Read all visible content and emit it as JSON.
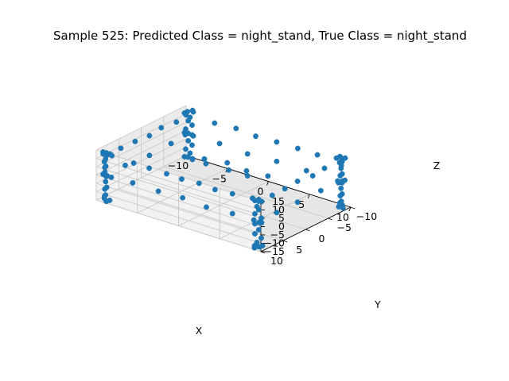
{
  "chart_data": {
    "type": "scatter",
    "title": "Sample 525: Predicted Class = night_stand, True Class = night_stand",
    "xlabel": "X",
    "ylabel": "Y",
    "zlabel": "Z",
    "xlim": [
      -10,
      10
    ],
    "ylim": [
      -10,
      10
    ],
    "zlim": [
      -15,
      15
    ],
    "xticks": [
      "−10",
      "−5",
      "0",
      "5",
      "10"
    ],
    "xtick_values": [
      -10,
      -5,
      0,
      5,
      10
    ],
    "yticks": [
      "−10",
      "−5",
      "0",
      "5",
      "10"
    ],
    "ytick_values": [
      -10,
      -5,
      0,
      5,
      10
    ],
    "zticks": [
      "−15",
      "−10",
      "−5",
      "0",
      "5",
      "10",
      "15"
    ],
    "ztick_values": [
      -15,
      -10,
      -5,
      0,
      5,
      10,
      15
    ],
    "grid": true,
    "projection": "3d",
    "marker_color": "#1f77b4",
    "pane_colors": {
      "x": "#f2f2f2",
      "y": "#ebebeb",
      "z": "#e6e6e6"
    },
    "points": [
      [
        -9.5,
        9.4,
        13.8
      ],
      [
        -9.3,
        9.5,
        12.9
      ],
      [
        -9.6,
        9.2,
        12.2
      ],
      [
        -9.0,
        9.6,
        14.3
      ],
      [
        -8.8,
        9.3,
        13.6
      ],
      [
        -9.2,
        9.0,
        11.9
      ],
      [
        -8.5,
        9.5,
        14.0
      ],
      [
        -8.6,
        9.1,
        12.6
      ],
      [
        9.3,
        9.2,
        14.1
      ],
      [
        9.0,
        9.5,
        13.4
      ],
      [
        9.5,
        8.9,
        12.8
      ],
      [
        8.8,
        9.6,
        14.6
      ],
      [
        9.1,
        8.8,
        12.2
      ],
      [
        8.6,
        9.3,
        13.9
      ],
      [
        9.2,
        -9.4,
        13.9
      ],
      [
        9.5,
        -9.0,
        12.9
      ],
      [
        8.9,
        -9.6,
        14.2
      ],
      [
        9.3,
        -8.8,
        12.3
      ],
      [
        8.7,
        -9.2,
        13.5
      ],
      [
        9.6,
        -9.5,
        14.5
      ],
      [
        -9.4,
        -9.2,
        13.4
      ],
      [
        -9.0,
        -9.6,
        14.2
      ],
      [
        -9.6,
        -8.9,
        12.6
      ],
      [
        -8.8,
        -9.4,
        13.8
      ],
      [
        -9.3,
        -8.7,
        12.2
      ],
      [
        -6.0,
        9.0,
        12.0
      ],
      [
        -4.0,
        9.2,
        12.3
      ],
      [
        -2.0,
        9.0,
        11.8
      ],
      [
        0.0,
        9.3,
        12.1
      ],
      [
        2.0,
        9.1,
        12.4
      ],
      [
        4.0,
        9.2,
        11.9
      ],
      [
        6.0,
        9.0,
        12.2
      ],
      [
        -6.0,
        -9.0,
        12.0
      ],
      [
        -3.5,
        -9.2,
        12.4
      ],
      [
        -1.0,
        -9.0,
        11.9
      ],
      [
        1.5,
        -9.1,
        12.2
      ],
      [
        4.0,
        -9.2,
        12.0
      ],
      [
        6.5,
        -9.0,
        12.3
      ],
      [
        -9.0,
        -6.0,
        12.0
      ],
      [
        -9.2,
        -3.0,
        12.3
      ],
      [
        -9.0,
        0.0,
        11.8
      ],
      [
        -9.1,
        3.0,
        12.2
      ],
      [
        -9.2,
        6.0,
        12.0
      ],
      [
        9.0,
        -6.0,
        12.1
      ],
      [
        9.2,
        -3.0,
        11.9
      ],
      [
        9.0,
        0.0,
        12.3
      ],
      [
        9.1,
        3.0,
        12.0
      ],
      [
        9.2,
        6.0,
        12.2
      ],
      [
        -9.4,
        9.3,
        8.0
      ],
      [
        -9.1,
        9.5,
        6.0
      ],
      [
        -9.5,
        9.0,
        4.0
      ],
      [
        -9.2,
        9.4,
        10.0
      ],
      [
        9.3,
        9.2,
        8.0
      ],
      [
        9.0,
        9.5,
        5.5
      ],
      [
        9.5,
        9.0,
        3.0
      ],
      [
        9.2,
        9.4,
        10.0
      ],
      [
        9.2,
        -9.3,
        8.0
      ],
      [
        9.5,
        -9.0,
        5.5
      ],
      [
        9.0,
        -9.5,
        3.0
      ],
      [
        9.3,
        -9.2,
        10.0
      ],
      [
        -9.3,
        -9.2,
        8.0
      ],
      [
        -9.0,
        -9.5,
        5.5
      ],
      [
        -9.5,
        -9.0,
        3.0
      ],
      [
        -9.2,
        -9.4,
        10.0
      ],
      [
        -9.5,
        9.4,
        0.5
      ],
      [
        -9.2,
        9.0,
        -0.6
      ],
      [
        -9.0,
        9.6,
        0.2
      ],
      [
        -8.6,
        9.2,
        -0.3
      ],
      [
        -9.6,
        8.8,
        0.8
      ],
      [
        9.4,
        9.3,
        0.6
      ],
      [
        9.0,
        9.5,
        -0.5
      ],
      [
        9.5,
        8.9,
        0.1
      ],
      [
        8.7,
        9.2,
        0.9
      ],
      [
        9.2,
        8.7,
        -0.8
      ],
      [
        9.3,
        -9.4,
        0.4
      ],
      [
        9.0,
        -9.1,
        -0.7
      ],
      [
        9.5,
        -9.6,
        0.9
      ],
      [
        8.8,
        -9.3,
        -0.2
      ],
      [
        9.6,
        -8.8,
        0.6
      ],
      [
        -9.3,
        -9.2,
        0.5
      ],
      [
        -9.0,
        -9.5,
        -0.4
      ],
      [
        -9.6,
        -8.9,
        0.9
      ],
      [
        -8.8,
        -9.4,
        -0.6
      ],
      [
        -9.4,
        -8.7,
        0.2
      ],
      [
        -6.0,
        9.2,
        0.4
      ],
      [
        -3.0,
        9.0,
        -0.2
      ],
      [
        0.0,
        9.1,
        0.6
      ],
      [
        3.0,
        9.3,
        -0.1
      ],
      [
        6.0,
        9.0,
        0.3
      ],
      [
        -5.5,
        -9.2,
        0.2
      ],
      [
        -2.0,
        -9.0,
        -0.3
      ],
      [
        1.5,
        -9.1,
        0.5
      ],
      [
        5.0,
        -9.3,
        0.1
      ],
      [
        -9.1,
        -5.0,
        0.3
      ],
      [
        -9.0,
        0.0,
        0.0
      ],
      [
        -9.2,
        5.0,
        0.4
      ],
      [
        9.1,
        -5.0,
        0.2
      ],
      [
        9.0,
        0.0,
        -0.2
      ],
      [
        9.2,
        5.0,
        0.5
      ],
      [
        -4.5,
        -4.0,
        -0.5
      ],
      [
        -2.0,
        -4.5,
        0.4
      ],
      [
        0.5,
        -4.2,
        -0.2
      ],
      [
        3.0,
        -4.4,
        0.3
      ],
      [
        -3.5,
        -2.5,
        0.2
      ],
      [
        -1.0,
        -3.0,
        -0.4
      ],
      [
        1.5,
        -2.6,
        0.5
      ],
      [
        -9.3,
        9.2,
        -4.0
      ],
      [
        -9.0,
        9.5,
        -6.5
      ],
      [
        -9.5,
        9.0,
        -9.0
      ],
      [
        -9.2,
        9.4,
        -11.5
      ],
      [
        9.3,
        9.2,
        -4.0
      ],
      [
        9.0,
        9.5,
        -6.5
      ],
      [
        9.5,
        9.0,
        -9.0
      ],
      [
        9.2,
        9.4,
        -11.5
      ],
      [
        9.2,
        -9.3,
        -4.0
      ],
      [
        9.5,
        -9.0,
        -6.5
      ],
      [
        9.0,
        -9.5,
        -9.0
      ],
      [
        9.3,
        -9.2,
        -11.5
      ],
      [
        -9.3,
        -9.2,
        -4.0
      ],
      [
        -9.0,
        -9.5,
        -6.5
      ],
      [
        -9.5,
        -9.0,
        -9.0
      ],
      [
        -9.2,
        -9.4,
        -11.5
      ],
      [
        -9.4,
        9.3,
        -14.0
      ],
      [
        -9.0,
        9.6,
        -14.8
      ],
      [
        -9.6,
        8.9,
        -13.6
      ],
      [
        -8.8,
        9.2,
        -14.4
      ],
      [
        9.4,
        9.3,
        -14.0
      ],
      [
        9.0,
        9.6,
        -14.8
      ],
      [
        9.6,
        8.9,
        -13.6
      ],
      [
        8.8,
        9.2,
        -14.4
      ],
      [
        9.3,
        -9.4,
        -14.0
      ],
      [
        9.6,
        -9.0,
        -14.8
      ],
      [
        8.9,
        -9.6,
        -13.6
      ],
      [
        9.2,
        -8.8,
        -14.4
      ],
      [
        -9.4,
        -9.3,
        -14.0
      ],
      [
        -9.0,
        -9.6,
        -14.8
      ],
      [
        -9.6,
        -8.9,
        -13.6
      ],
      [
        -8.8,
        -9.2,
        -14.4
      ]
    ]
  }
}
